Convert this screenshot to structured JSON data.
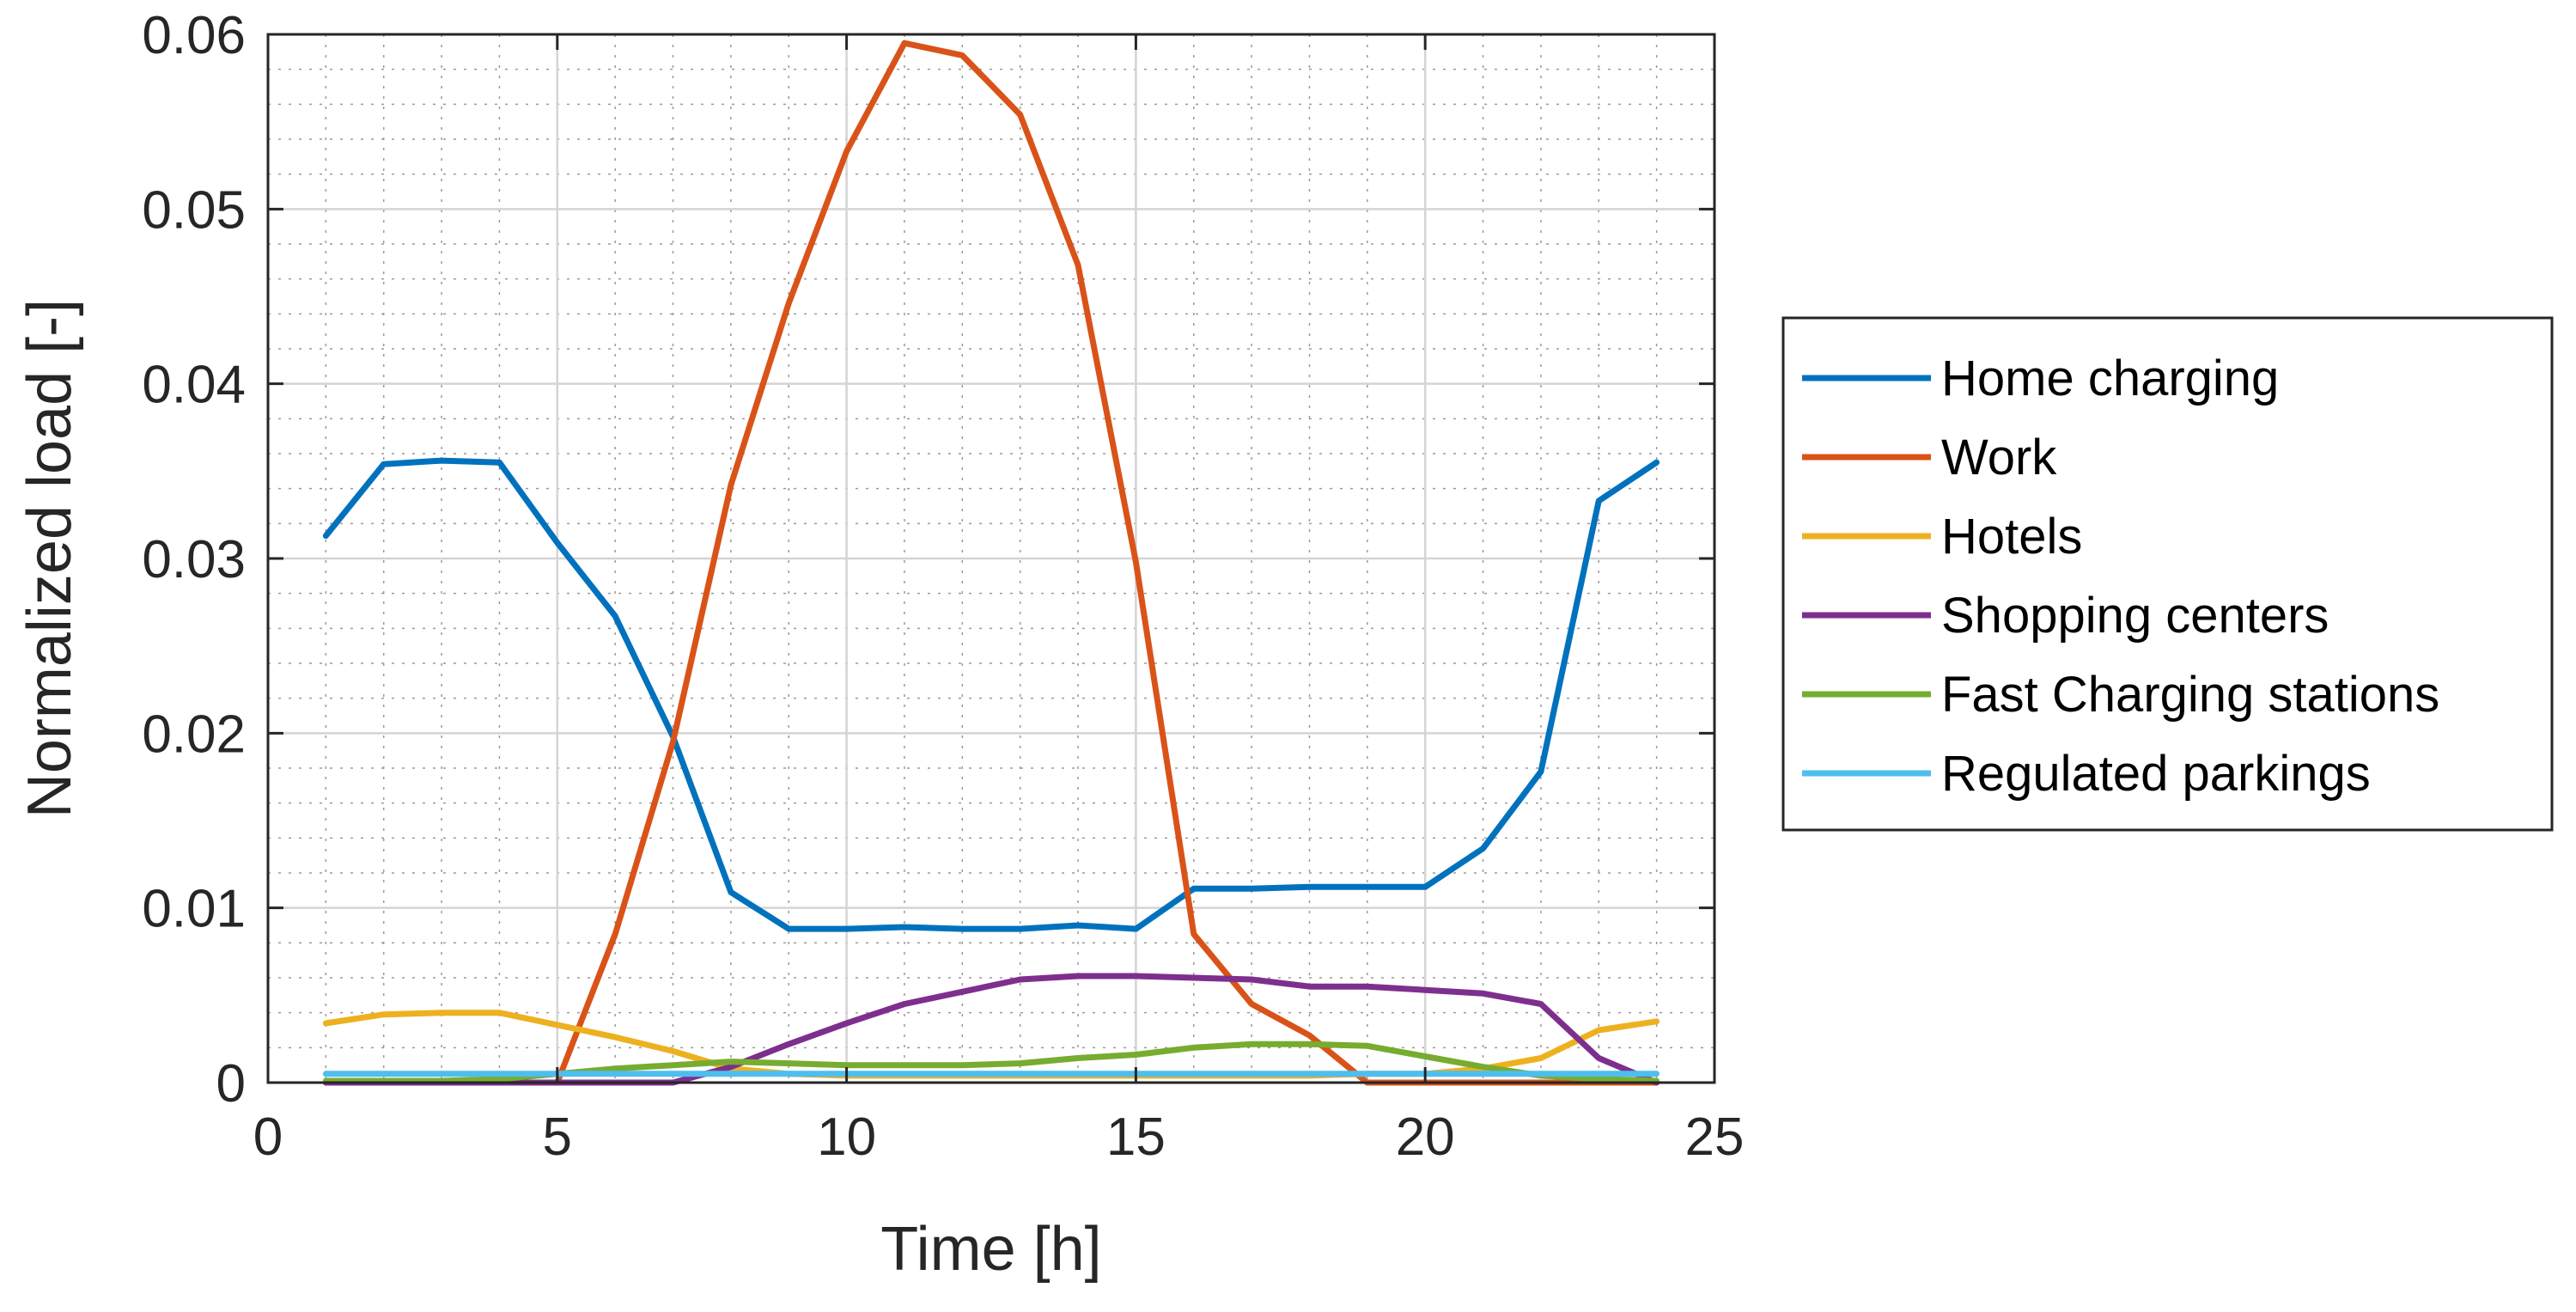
{
  "chart_data": {
    "type": "line",
    "title": "",
    "xlabel": "Time [h]",
    "ylabel": "Normalized load [-]",
    "xlim": [
      0,
      25
    ],
    "ylim": [
      0,
      0.06
    ],
    "grid": true,
    "minor_grid": true,
    "legend_position": "outside-right",
    "x_ticks": [
      0,
      5,
      10,
      15,
      20,
      25
    ],
    "x_tick_labels": [
      "0",
      "5",
      "10",
      "15",
      "20",
      "25"
    ],
    "y_ticks": [
      0,
      0.01,
      0.02,
      0.03,
      0.04,
      0.05,
      0.06
    ],
    "y_tick_labels": [
      "0",
      "0.01",
      "0.02",
      "0.03",
      "0.04",
      "0.05",
      "0.06"
    ],
    "x": [
      1,
      2,
      3,
      4,
      5,
      6,
      7,
      8,
      9,
      10,
      11,
      12,
      13,
      14,
      15,
      16,
      17,
      18,
      19,
      20,
      21,
      22,
      23,
      24
    ],
    "series": [
      {
        "name": "Home charging",
        "color": "#0072BD",
        "values": [
          0.0313,
          0.0354,
          0.0356,
          0.0355,
          0.0309,
          0.0267,
          0.0198,
          0.0109,
          0.0088,
          0.0088,
          0.0089,
          0.0088,
          0.0088,
          0.009,
          0.0088,
          0.0111,
          0.0111,
          0.0112,
          0.0112,
          0.0112,
          0.0134,
          0.0178,
          0.0333,
          0.0355
        ]
      },
      {
        "name": "Work",
        "color": "#D95319",
        "values": [
          0.0,
          0.0,
          0.0,
          0.0,
          0.0,
          0.0085,
          0.0195,
          0.0342,
          0.0446,
          0.0533,
          0.0595,
          0.0588,
          0.0554,
          0.0468,
          0.0298,
          0.0085,
          0.0045,
          0.0027,
          0.0,
          0.0,
          0.0,
          0.0,
          0.0,
          0.0
        ]
      },
      {
        "name": "Hotels",
        "color": "#EDB120",
        "values": [
          0.0034,
          0.0039,
          0.004,
          0.004,
          0.0033,
          0.0026,
          0.0018,
          0.0008,
          0.0005,
          0.0004,
          0.0004,
          0.0004,
          0.0004,
          0.0004,
          0.0004,
          0.0004,
          0.0004,
          0.0004,
          0.0005,
          0.0005,
          0.0008,
          0.0014,
          0.003,
          0.0035
        ]
      },
      {
        "name": "Shopping centers",
        "color": "#7E2F8E",
        "values": [
          0.0,
          0.0,
          0.0,
          0.0,
          0.0,
          0.0,
          0.0,
          0.0009,
          0.0022,
          0.0034,
          0.0045,
          0.0052,
          0.0059,
          0.0061,
          0.0061,
          0.006,
          0.0059,
          0.0055,
          0.0055,
          0.0053,
          0.0051,
          0.0045,
          0.0014,
          0.0
        ]
      },
      {
        "name": "Fast Charging stations",
        "color": "#77AC30",
        "values": [
          0.0001,
          0.0001,
          0.0001,
          0.0002,
          0.0005,
          0.0008,
          0.001,
          0.0012,
          0.0011,
          0.001,
          0.001,
          0.001,
          0.0011,
          0.0014,
          0.0016,
          0.002,
          0.0022,
          0.0022,
          0.0021,
          0.0015,
          0.0009,
          0.0004,
          0.0002,
          0.0001
        ]
      },
      {
        "name": "Regulated parkings",
        "color": "#4DBEEE",
        "values": [
          0.0005,
          0.0005,
          0.0005,
          0.0005,
          0.0005,
          0.0005,
          0.0005,
          0.0005,
          0.0005,
          0.0005,
          0.0005,
          0.0005,
          0.0005,
          0.0005,
          0.0005,
          0.0005,
          0.0005,
          0.0005,
          0.0005,
          0.0005,
          0.0005,
          0.0005,
          0.0005,
          0.0005
        ]
      }
    ]
  }
}
